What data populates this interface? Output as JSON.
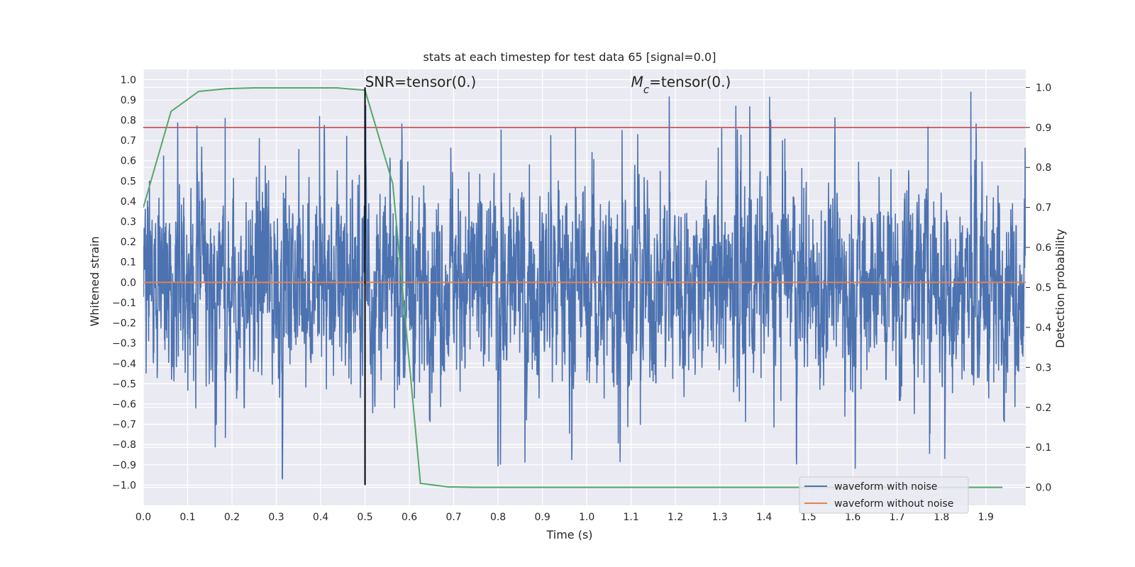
{
  "chart_data": {
    "type": "line",
    "title": "stats at each timestep for test data 65 [signal=0.0]",
    "xlabel": "Time (s)",
    "ylabel_left": "Whitened strain",
    "ylabel_right": "Detection probability",
    "xlim": [
      0.0,
      1.99
    ],
    "ylim_left": [
      -1.1,
      1.05
    ],
    "ylim_right": [
      -0.045,
      1.045
    ],
    "x_ticks": [
      "0.0",
      "0.1",
      "0.2",
      "0.3",
      "0.4",
      "0.5",
      "0.6",
      "0.7",
      "0.8",
      "0.9",
      "1.0",
      "1.1",
      "1.2",
      "1.3",
      "1.4",
      "1.5",
      "1.6",
      "1.7",
      "1.8",
      "1.9"
    ],
    "y_ticks_left": [
      "1.0",
      "0.9",
      "0.8",
      "0.7",
      "0.6",
      "0.5",
      "0.4",
      "0.3",
      "0.2",
      "0.1",
      "0.0",
      "-0.1",
      "-0.2",
      "-0.3",
      "-0.4",
      "-0.5",
      "-0.6",
      "-0.7",
      "-0.8",
      "-0.9",
      "-1.0"
    ],
    "y_ticks_right": [
      "1.0",
      "0.9",
      "0.8",
      "0.7",
      "0.6",
      "0.5",
      "0.4",
      "0.3",
      "0.2",
      "0.1",
      "0.0"
    ],
    "grid": true,
    "legend_position": "lower-right",
    "series": [
      {
        "name": "waveform with noise",
        "axis": "left",
        "color": "#4c72b0",
        "style": "dense noise, amplitude mostly within ±0.7 with spikes to about ±0.96"
      },
      {
        "name": "waveform without noise",
        "axis": "left",
        "color": "#dd8452",
        "values_constant": 0.0
      },
      {
        "axis": "right",
        "color": "#55a868",
        "x": [
          0.0,
          0.0625,
          0.125,
          0.1875,
          0.25,
          0.3125,
          0.375,
          0.4375,
          0.5,
          0.5625,
          0.625,
          0.6875,
          0.75,
          1.0,
          1.5,
          1.9375
        ],
        "y": [
          0.7,
          0.94,
          0.99,
          0.997,
          0.999,
          0.999,
          0.999,
          0.999,
          0.993,
          0.76,
          0.01,
          0.001,
          0.0,
          0.0,
          0.0,
          0.0
        ]
      }
    ],
    "threshold": {
      "axis": "right",
      "value": 0.9,
      "color": "#c44e52"
    },
    "vertical_marker": {
      "x": 0.5,
      "color": "#000000"
    },
    "annotations": [
      {
        "text": "SNR=tensor(0.)",
        "x": 0.5
      },
      {
        "text_main": "M",
        "text_sub": "c",
        "text_rest": "=tensor(0.)",
        "x": 1.1
      }
    ]
  }
}
